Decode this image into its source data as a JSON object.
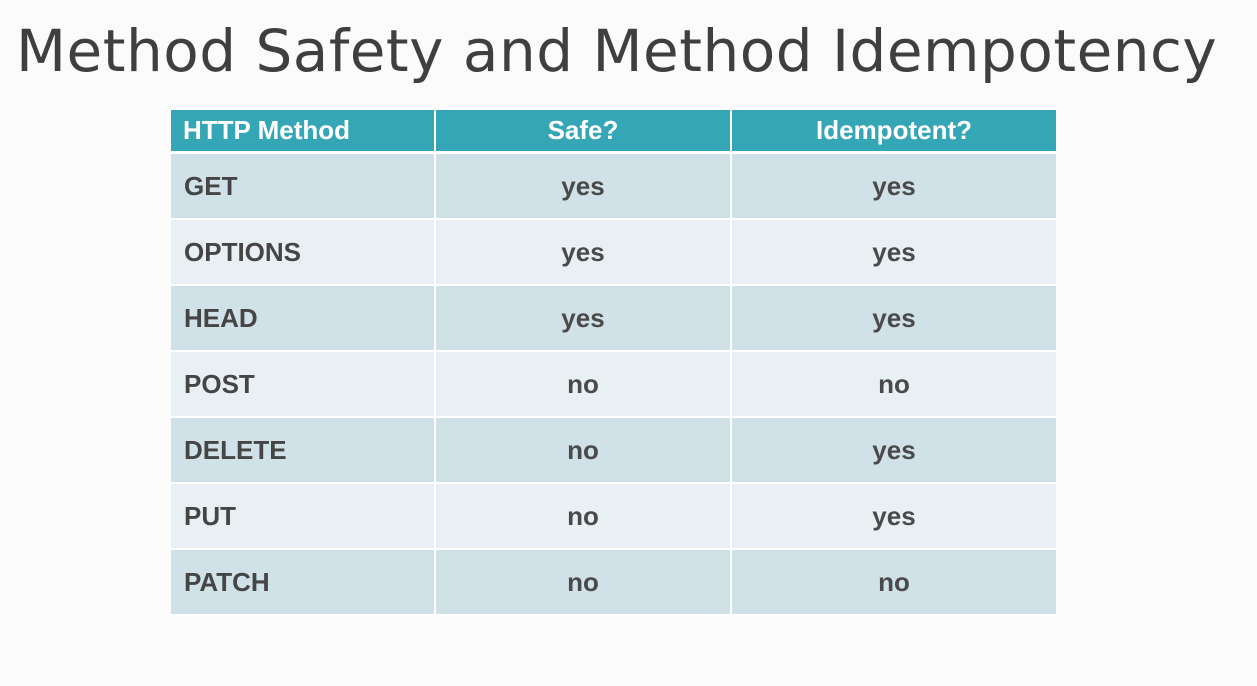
{
  "title": "Method Safety and Method Idempotency",
  "table": {
    "headers": [
      "HTTP Method",
      "Safe?",
      "Idempotent?"
    ],
    "rows": [
      {
        "method": "GET",
        "safe": "yes",
        "idempotent": "yes"
      },
      {
        "method": "OPTIONS",
        "safe": "yes",
        "idempotent": "yes"
      },
      {
        "method": "HEAD",
        "safe": "yes",
        "idempotent": "yes"
      },
      {
        "method": "POST",
        "safe": "no",
        "idempotent": "no"
      },
      {
        "method": "DELETE",
        "safe": "no",
        "idempotent": "yes"
      },
      {
        "method": "PUT",
        "safe": "no",
        "idempotent": "yes"
      },
      {
        "method": "PATCH",
        "safe": "no",
        "idempotent": "no"
      }
    ]
  },
  "colors": {
    "header_bg": "#34a6b6",
    "row_dark": "#d0e1e8",
    "row_light": "#e8f0f4",
    "title_text": "#3f3f3f"
  }
}
